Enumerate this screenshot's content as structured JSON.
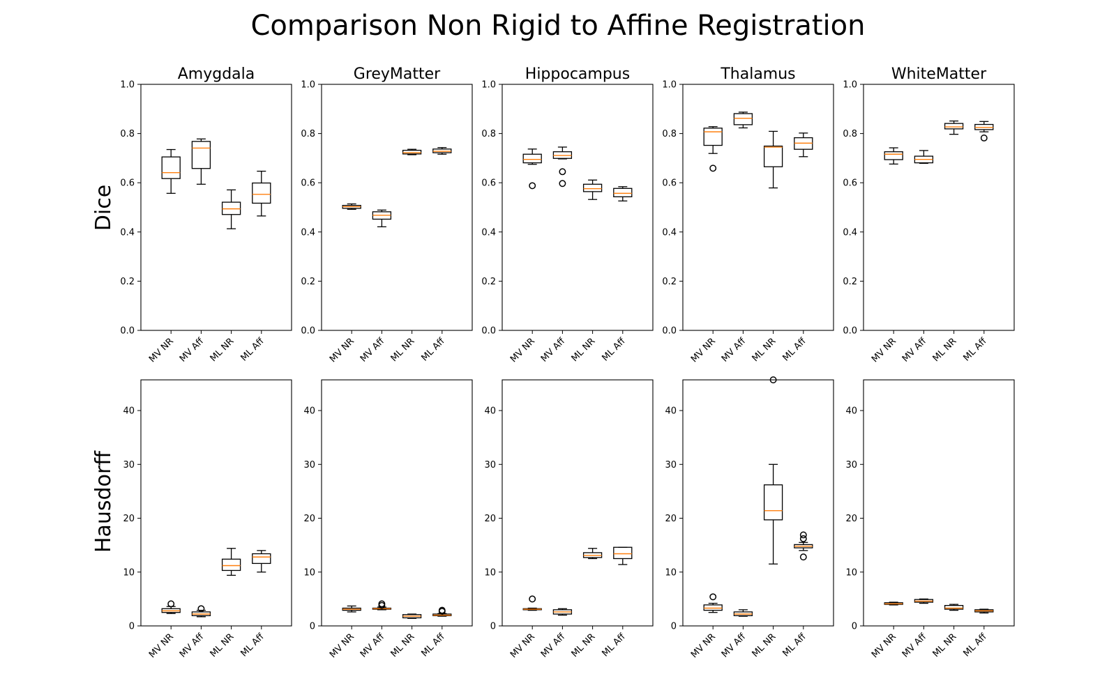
{
  "chart_data": {
    "type": "boxplot",
    "title": "Comparison Non Rigid to Affine Registration",
    "structures": [
      "Amygdala",
      "GreyMatter",
      "Hippocampus",
      "Thalamus",
      "WhiteMatter"
    ],
    "categories": [
      "MV NR",
      "MV Aff",
      "ML NR",
      "ML Aff"
    ],
    "median_color": "#ff7f0e",
    "box_color": "#000000",
    "grid": false,
    "rows": [
      {
        "metric": "Dice",
        "ylim": [
          0,
          1.0
        ],
        "yticks": [
          0.0,
          0.2,
          0.4,
          0.6,
          0.8,
          1.0
        ],
        "ytick_labels": [
          "0.0",
          "0.2",
          "0.4",
          "0.6",
          "0.8",
          "1.0"
        ],
        "panels": [
          {
            "structure": "Amygdala",
            "boxes": [
              {
                "whislo": 0.557,
                "q1": 0.617,
                "med": 0.641,
                "q3": 0.705,
                "whishi": 0.735,
                "fliers": []
              },
              {
                "whislo": 0.594,
                "q1": 0.658,
                "med": 0.741,
                "q3": 0.768,
                "whishi": 0.778,
                "fliers": []
              },
              {
                "whislo": 0.413,
                "q1": 0.471,
                "med": 0.494,
                "q3": 0.521,
                "whishi": 0.571,
                "fliers": []
              },
              {
                "whislo": 0.465,
                "q1": 0.517,
                "med": 0.553,
                "q3": 0.599,
                "whishi": 0.647,
                "fliers": []
              }
            ]
          },
          {
            "structure": "GreyMatter",
            "boxes": [
              {
                "whislo": 0.492,
                "q1": 0.496,
                "med": 0.503,
                "q3": 0.508,
                "whishi": 0.514,
                "fliers": []
              },
              {
                "whislo": 0.421,
                "q1": 0.452,
                "med": 0.468,
                "q3": 0.482,
                "whishi": 0.489,
                "fliers": []
              },
              {
                "whislo": 0.714,
                "q1": 0.717,
                "med": 0.722,
                "q3": 0.732,
                "whishi": 0.736,
                "fliers": []
              },
              {
                "whislo": 0.716,
                "q1": 0.722,
                "med": 0.728,
                "q3": 0.737,
                "whishi": 0.743,
                "fliers": []
              }
            ]
          },
          {
            "structure": "Hippocampus",
            "boxes": [
              {
                "whislo": 0.675,
                "q1": 0.681,
                "med": 0.695,
                "q3": 0.716,
                "whishi": 0.737,
                "fliers": [
                  0.588
                ]
              },
              {
                "whislo": 0.697,
                "q1": 0.699,
                "med": 0.711,
                "q3": 0.726,
                "whishi": 0.745,
                "fliers": [
                  0.645,
                  0.597
                ]
              },
              {
                "whislo": 0.532,
                "q1": 0.564,
                "med": 0.576,
                "q3": 0.594,
                "whishi": 0.611,
                "fliers": []
              },
              {
                "whislo": 0.526,
                "q1": 0.543,
                "med": 0.557,
                "q3": 0.577,
                "whishi": 0.584,
                "fliers": []
              }
            ]
          },
          {
            "structure": "Thalamus",
            "boxes": [
              {
                "whislo": 0.719,
                "q1": 0.752,
                "med": 0.807,
                "q3": 0.822,
                "whishi": 0.828,
                "fliers": [
                  0.659
                ]
              },
              {
                "whislo": 0.823,
                "q1": 0.836,
                "med": 0.862,
                "q3": 0.881,
                "whishi": 0.887,
                "fliers": []
              },
              {
                "whislo": 0.579,
                "q1": 0.665,
                "med": 0.745,
                "q3": 0.749,
                "whishi": 0.809,
                "fliers": []
              },
              {
                "whislo": 0.706,
                "q1": 0.736,
                "med": 0.761,
                "q3": 0.783,
                "whishi": 0.802,
                "fliers": []
              }
            ]
          },
          {
            "structure": "WhiteMatter",
            "boxes": [
              {
                "whislo": 0.676,
                "q1": 0.694,
                "med": 0.716,
                "q3": 0.726,
                "whishi": 0.742,
                "fliers": []
              },
              {
                "whislo": 0.679,
                "q1": 0.681,
                "med": 0.695,
                "q3": 0.708,
                "whishi": 0.731,
                "fliers": []
              },
              {
                "whislo": 0.797,
                "q1": 0.819,
                "med": 0.827,
                "q3": 0.841,
                "whishi": 0.851,
                "fliers": []
              },
              {
                "whislo": 0.807,
                "q1": 0.816,
                "med": 0.825,
                "q3": 0.837,
                "whishi": 0.849,
                "fliers": [
                  0.782
                ]
              }
            ]
          }
        ]
      },
      {
        "metric": "Hausdorff",
        "ylim": [
          0,
          45.7
        ],
        "yticks": [
          0,
          10,
          20,
          30,
          40
        ],
        "ytick_labels": [
          "0",
          "10",
          "20",
          "30",
          "40"
        ],
        "panels": [
          {
            "structure": "Amygdala",
            "boxes": [
              {
                "whislo": 2.3,
                "q1": 2.5,
                "med": 2.8,
                "q3": 3.2,
                "whishi": 3.6,
                "fliers": [
                  4.1
                ]
              },
              {
                "whislo": 1.7,
                "q1": 1.9,
                "med": 2.2,
                "q3": 2.6,
                "whishi": 2.9,
                "fliers": [
                  3.2
                ]
              },
              {
                "whislo": 9.4,
                "q1": 10.3,
                "med": 11.2,
                "q3": 12.4,
                "whishi": 14.4,
                "fliers": []
              },
              {
                "whislo": 10.0,
                "q1": 11.6,
                "med": 12.8,
                "q3": 13.4,
                "whishi": 14.0,
                "fliers": []
              }
            ]
          },
          {
            "structure": "GreyMatter",
            "boxes": [
              {
                "whislo": 2.6,
                "q1": 2.9,
                "med": 3.1,
                "q3": 3.3,
                "whishi": 3.7,
                "fliers": []
              },
              {
                "whislo": 3.0,
                "q1": 3.1,
                "med": 3.2,
                "q3": 3.3,
                "whishi": 3.5,
                "fliers": [
                  4.1,
                  3.8
                ]
              },
              {
                "whislo": 1.4,
                "q1": 1.5,
                "med": 1.8,
                "q3": 2.1,
                "whishi": 2.2,
                "fliers": []
              },
              {
                "whislo": 1.8,
                "q1": 1.9,
                "med": 2.0,
                "q3": 2.2,
                "whishi": 2.3,
                "fliers": [
                  2.9,
                  2.7
                ]
              }
            ]
          },
          {
            "structure": "Hippocampus",
            "boxes": [
              {
                "whislo": 2.9,
                "q1": 3.0,
                "med": 3.1,
                "q3": 3.2,
                "whishi": 3.3,
                "fliers": [
                  5.0
                ]
              },
              {
                "whislo": 2.0,
                "q1": 2.2,
                "med": 2.6,
                "q3": 3.0,
                "whishi": 3.2,
                "fliers": []
              },
              {
                "whislo": 12.5,
                "q1": 12.7,
                "med": 13.1,
                "q3": 13.6,
                "whishi": 14.4,
                "fliers": []
              },
              {
                "whislo": 11.4,
                "q1": 12.5,
                "med": 13.4,
                "q3": 14.6,
                "whishi": 14.6,
                "fliers": []
              }
            ]
          },
          {
            "structure": "Thalamus",
            "boxes": [
              {
                "whislo": 2.5,
                "q1": 2.9,
                "med": 3.3,
                "q3": 3.9,
                "whishi": 4.2,
                "fliers": [
                  5.4
                ]
              },
              {
                "whislo": 1.8,
                "q1": 1.9,
                "med": 2.2,
                "q3": 2.6,
                "whishi": 3.0,
                "fliers": []
              },
              {
                "whislo": 11.5,
                "q1": 19.7,
                "med": 21.4,
                "q3": 26.2,
                "whishi": 30.0,
                "fliers": [
                  45.7
                ]
              },
              {
                "whislo": 14.0,
                "q1": 14.5,
                "med": 14.8,
                "q3": 15.1,
                "whishi": 15.5,
                "fliers": [
                  16.9,
                  16.2,
                  12.8
                ]
              }
            ]
          },
          {
            "structure": "WhiteMatter",
            "boxes": [
              {
                "whislo": 3.9,
                "q1": 4.0,
                "med": 4.1,
                "q3": 4.3,
                "whishi": 4.4,
                "fliers": []
              },
              {
                "whislo": 4.2,
                "q1": 4.4,
                "med": 4.6,
                "q3": 4.9,
                "whishi": 5.0,
                "fliers": []
              },
              {
                "whislo": 2.9,
                "q1": 3.1,
                "med": 3.3,
                "q3": 3.8,
                "whishi": 4.0,
                "fliers": []
              },
              {
                "whislo": 2.4,
                "q1": 2.6,
                "med": 2.8,
                "q3": 3.0,
                "whishi": 3.1,
                "fliers": []
              }
            ]
          }
        ]
      }
    ]
  }
}
